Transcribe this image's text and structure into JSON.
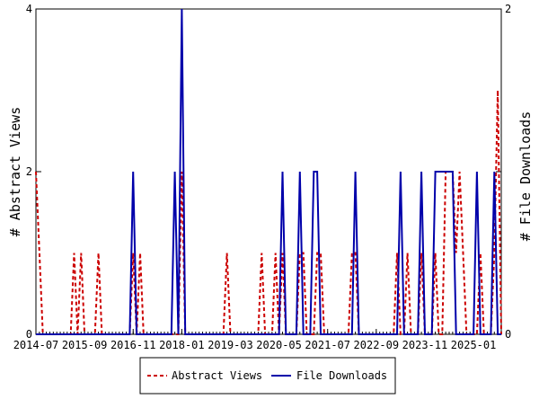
{
  "chart_data": {
    "type": "line",
    "x_tick_labels": [
      "2014-07",
      "2015-09",
      "2016-11",
      "2018-01",
      "2019-03",
      "2020-05",
      "2021-07",
      "2022-09",
      "2023-11",
      "2025-01"
    ],
    "x_range": [
      "2014-07",
      "2025-09"
    ],
    "ylabel_left": "# Abstract Views",
    "ylabel_right": "# File Downloads",
    "ylim_left": [
      0,
      4
    ],
    "ylim_right": [
      0,
      2
    ],
    "yticks_left": [
      "0",
      "2",
      "4"
    ],
    "yticks_right": [
      "0",
      "1",
      "2"
    ],
    "grid": false,
    "legend_position": "bottom-center",
    "series": [
      {
        "name": "Abstract Views",
        "axis": "left",
        "color": "#cc0000",
        "style": "dashed",
        "points": [
          [
            "2014-07",
            2
          ],
          [
            "2014-08",
            1
          ],
          [
            "2014-09",
            0
          ],
          [
            "2015-05",
            0
          ],
          [
            "2015-06",
            1
          ],
          [
            "2015-07",
            0
          ],
          [
            "2015-08",
            1
          ],
          [
            "2015-09",
            0
          ],
          [
            "2015-12",
            0
          ],
          [
            "2016-01",
            1
          ],
          [
            "2016-02",
            0
          ],
          [
            "2016-10",
            0
          ],
          [
            "2016-11",
            1
          ],
          [
            "2016-12",
            0
          ],
          [
            "2017-01",
            1
          ],
          [
            "2017-02",
            0
          ],
          [
            "2017-12",
            0
          ],
          [
            "2018-01",
            2
          ],
          [
            "2018-02",
            0
          ],
          [
            "2019-01",
            0
          ],
          [
            "2019-02",
            1
          ],
          [
            "2019-03",
            0
          ],
          [
            "2019-11",
            0
          ],
          [
            "2019-12",
            1
          ],
          [
            "2020-01",
            0
          ],
          [
            "2020-03",
            0
          ],
          [
            "2020-04",
            1
          ],
          [
            "2020-05",
            0
          ],
          [
            "2020-06",
            1
          ],
          [
            "2020-07",
            0
          ],
          [
            "2020-10",
            0
          ],
          [
            "2020-11",
            1
          ],
          [
            "2020-12",
            1
          ],
          [
            "2021-01",
            0
          ],
          [
            "2021-03",
            0
          ],
          [
            "2021-04",
            1
          ],
          [
            "2021-05",
            1
          ],
          [
            "2021-06",
            0
          ],
          [
            "2022-01",
            0
          ],
          [
            "2022-02",
            1
          ],
          [
            "2022-03",
            1
          ],
          [
            "2022-04",
            0
          ],
          [
            "2023-02",
            0
          ],
          [
            "2023-03",
            1
          ],
          [
            "2023-04",
            0
          ],
          [
            "2023-05",
            0
          ],
          [
            "2023-06",
            1
          ],
          [
            "2023-07",
            0
          ],
          [
            "2023-09",
            0
          ],
          [
            "2023-10",
            1
          ],
          [
            "2023-11",
            0
          ],
          [
            "2024-01",
            0
          ],
          [
            "2024-02",
            1
          ],
          [
            "2024-03",
            0
          ],
          [
            "2024-04",
            0
          ],
          [
            "2024-05",
            2
          ],
          [
            "2024-06",
            2
          ],
          [
            "2024-07",
            2
          ],
          [
            "2024-08",
            1
          ],
          [
            "2024-09",
            2
          ],
          [
            "2024-10",
            1
          ],
          [
            "2024-11",
            0
          ],
          [
            "2025-02",
            0
          ],
          [
            "2025-03",
            1
          ],
          [
            "2025-04",
            0
          ],
          [
            "2025-06",
            0
          ],
          [
            "2025-07",
            1
          ],
          [
            "2025-08",
            3
          ],
          [
            "2025-09",
            0
          ]
        ]
      },
      {
        "name": "File Downloads",
        "axis": "right",
        "color": "#0000aa",
        "style": "solid",
        "points": [
          [
            "2014-07",
            0
          ],
          [
            "2016-10",
            0
          ],
          [
            "2016-11",
            1
          ],
          [
            "2016-12",
            0
          ],
          [
            "2017-10",
            0
          ],
          [
            "2017-11",
            1
          ],
          [
            "2017-12",
            0
          ],
          [
            "2018-01",
            2
          ],
          [
            "2018-02",
            0
          ],
          [
            "2020-05",
            0
          ],
          [
            "2020-06",
            1
          ],
          [
            "2020-07",
            0
          ],
          [
            "2020-10",
            0
          ],
          [
            "2020-11",
            1
          ],
          [
            "2020-12",
            0
          ],
          [
            "2021-02",
            0
          ],
          [
            "2021-03",
            1
          ],
          [
            "2021-04",
            1
          ],
          [
            "2021-05",
            0
          ],
          [
            "2022-02",
            0
          ],
          [
            "2022-03",
            1
          ],
          [
            "2022-04",
            0
          ],
          [
            "2023-03",
            0
          ],
          [
            "2023-04",
            1
          ],
          [
            "2023-05",
            0
          ],
          [
            "2023-09",
            0
          ],
          [
            "2023-10",
            1
          ],
          [
            "2023-11",
            0
          ],
          [
            "2024-01",
            0
          ],
          [
            "2024-02",
            1
          ],
          [
            "2024-03",
            1
          ],
          [
            "2024-04",
            1
          ],
          [
            "2024-05",
            1
          ],
          [
            "2024-06",
            1
          ],
          [
            "2024-07",
            1
          ],
          [
            "2024-08",
            0
          ],
          [
            "2025-01",
            0
          ],
          [
            "2025-02",
            1
          ],
          [
            "2025-03",
            0
          ],
          [
            "2025-06",
            0
          ],
          [
            "2025-07",
            1
          ],
          [
            "2025-08",
            0
          ],
          [
            "2025-09",
            0
          ]
        ]
      }
    ]
  }
}
